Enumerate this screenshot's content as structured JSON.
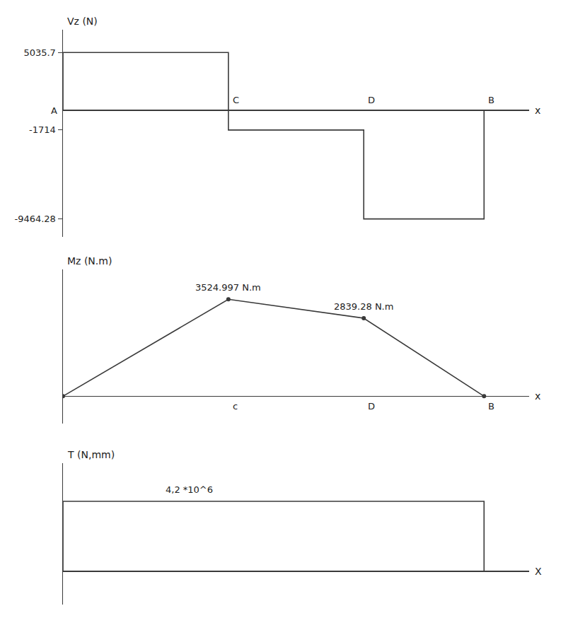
{
  "chart_data": [
    {
      "type": "step",
      "y_label": "Vz (N)",
      "x_label": "x",
      "color": "#3a3a3a",
      "bins": [
        0,
        0.55,
        1.0,
        1.4
      ],
      "values": [
        5035.7,
        -1714,
        -9464.28
      ],
      "xlim": [
        0,
        1.55
      ],
      "ylim": [
        -11000,
        7000
      ],
      "xticks": [
        {
          "value": 0,
          "label": "A"
        },
        {
          "value": 0.55,
          "label": "C"
        },
        {
          "value": 1.0,
          "label": "D"
        },
        {
          "value": 1.4,
          "label": "B"
        }
      ],
      "yticks": [
        5035.7,
        -1714,
        -9464.28
      ],
      "grid": false
    },
    {
      "type": "line",
      "y_label": "Mz (N.m)",
      "x_label": "x",
      "color": "#3a3a3a",
      "marker": "circle",
      "x": [
        0,
        0.55,
        1.0,
        1.4
      ],
      "values": [
        0,
        3524.997,
        2839.28,
        0
      ],
      "value_labels": [
        null,
        "3524.997 N.m",
        "2839.28 N.m",
        null
      ],
      "xlim": [
        0,
        1.55
      ],
      "ylim": [
        -1000,
        4600
      ],
      "xticks": [
        {
          "value": 0.55,
          "label": "c"
        },
        {
          "value": 1.0,
          "label": "D"
        },
        {
          "value": 1.4,
          "label": "B"
        }
      ],
      "tick_labels": "x",
      "grid": false
    },
    {
      "type": "step",
      "y_label": "T (N,mm)",
      "x_label": "X",
      "color": "#3a3a3a",
      "bins": [
        0,
        1.4
      ],
      "values": [
        4200000
      ],
      "value_labels": [
        "4,2 *10^6"
      ],
      "xlim": [
        0,
        1.55
      ],
      "ylim": [
        -2000000,
        6500000
      ],
      "tick_labels": false,
      "grid": false
    }
  ]
}
